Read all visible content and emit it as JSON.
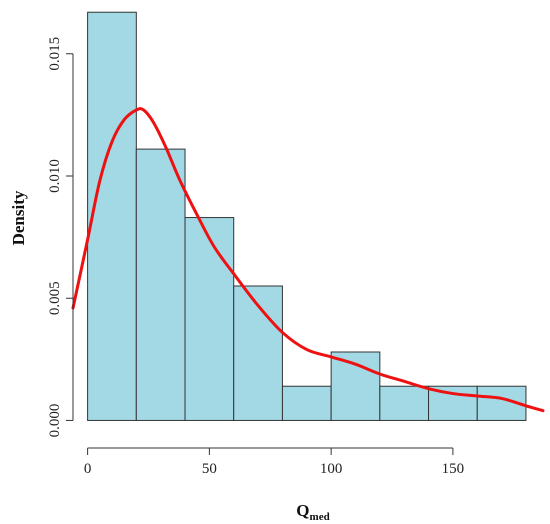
{
  "chart_data": {
    "type": "histogram",
    "title": "",
    "xlabel": "Q",
    "xlabel_subscript": "med",
    "ylabel": "Density",
    "xlim": [
      -6,
      187
    ],
    "ylim": [
      -0.0008,
      0.0172
    ],
    "x_ticks": [
      0,
      50,
      100,
      150
    ],
    "y_ticks": [
      0.0,
      0.005,
      0.01,
      0.015
    ],
    "x_tick_labels": [
      "0",
      "50",
      "100",
      "150"
    ],
    "y_tick_labels": [
      "0.000",
      "0.005",
      "0.010",
      "0.015"
    ],
    "bins": [
      {
        "x0": 0,
        "x1": 20,
        "density": 0.0167
      },
      {
        "x0": 20,
        "x1": 40,
        "density": 0.0111
      },
      {
        "x0": 40,
        "x1": 60,
        "density": 0.0083
      },
      {
        "x0": 60,
        "x1": 80,
        "density": 0.0055
      },
      {
        "x0": 80,
        "x1": 100,
        "density": 0.0014
      },
      {
        "x0": 100,
        "x1": 120,
        "density": 0.0028
      },
      {
        "x0": 120,
        "x1": 140,
        "density": 0.0014
      },
      {
        "x0": 140,
        "x1": 160,
        "density": 0.0014
      },
      {
        "x0": 160,
        "x1": 180,
        "density": 0.0014
      }
    ],
    "density_curve": {
      "name": "",
      "x": [
        -6,
        0,
        5,
        10,
        15,
        20,
        23,
        27,
        32,
        38,
        45,
        52,
        60,
        70,
        80,
        90,
        100,
        110,
        120,
        130,
        140,
        150,
        160,
        170,
        180,
        187
      ],
      "y": [
        0.0046,
        0.0074,
        0.0098,
        0.0114,
        0.0123,
        0.0127,
        0.0127,
        0.0122,
        0.0112,
        0.0098,
        0.0084,
        0.0071,
        0.006,
        0.0047,
        0.0036,
        0.0029,
        0.0026,
        0.0023,
        0.0019,
        0.0016,
        0.0013,
        0.0011,
        0.001,
        0.0009,
        0.0006,
        0.0004
      ]
    },
    "colors": {
      "bar_fill": "#a3d9e5",
      "bar_stroke": "#333333",
      "curve": "#ee1111",
      "axis": "#333333"
    },
    "grid": false,
    "legend": "none"
  }
}
